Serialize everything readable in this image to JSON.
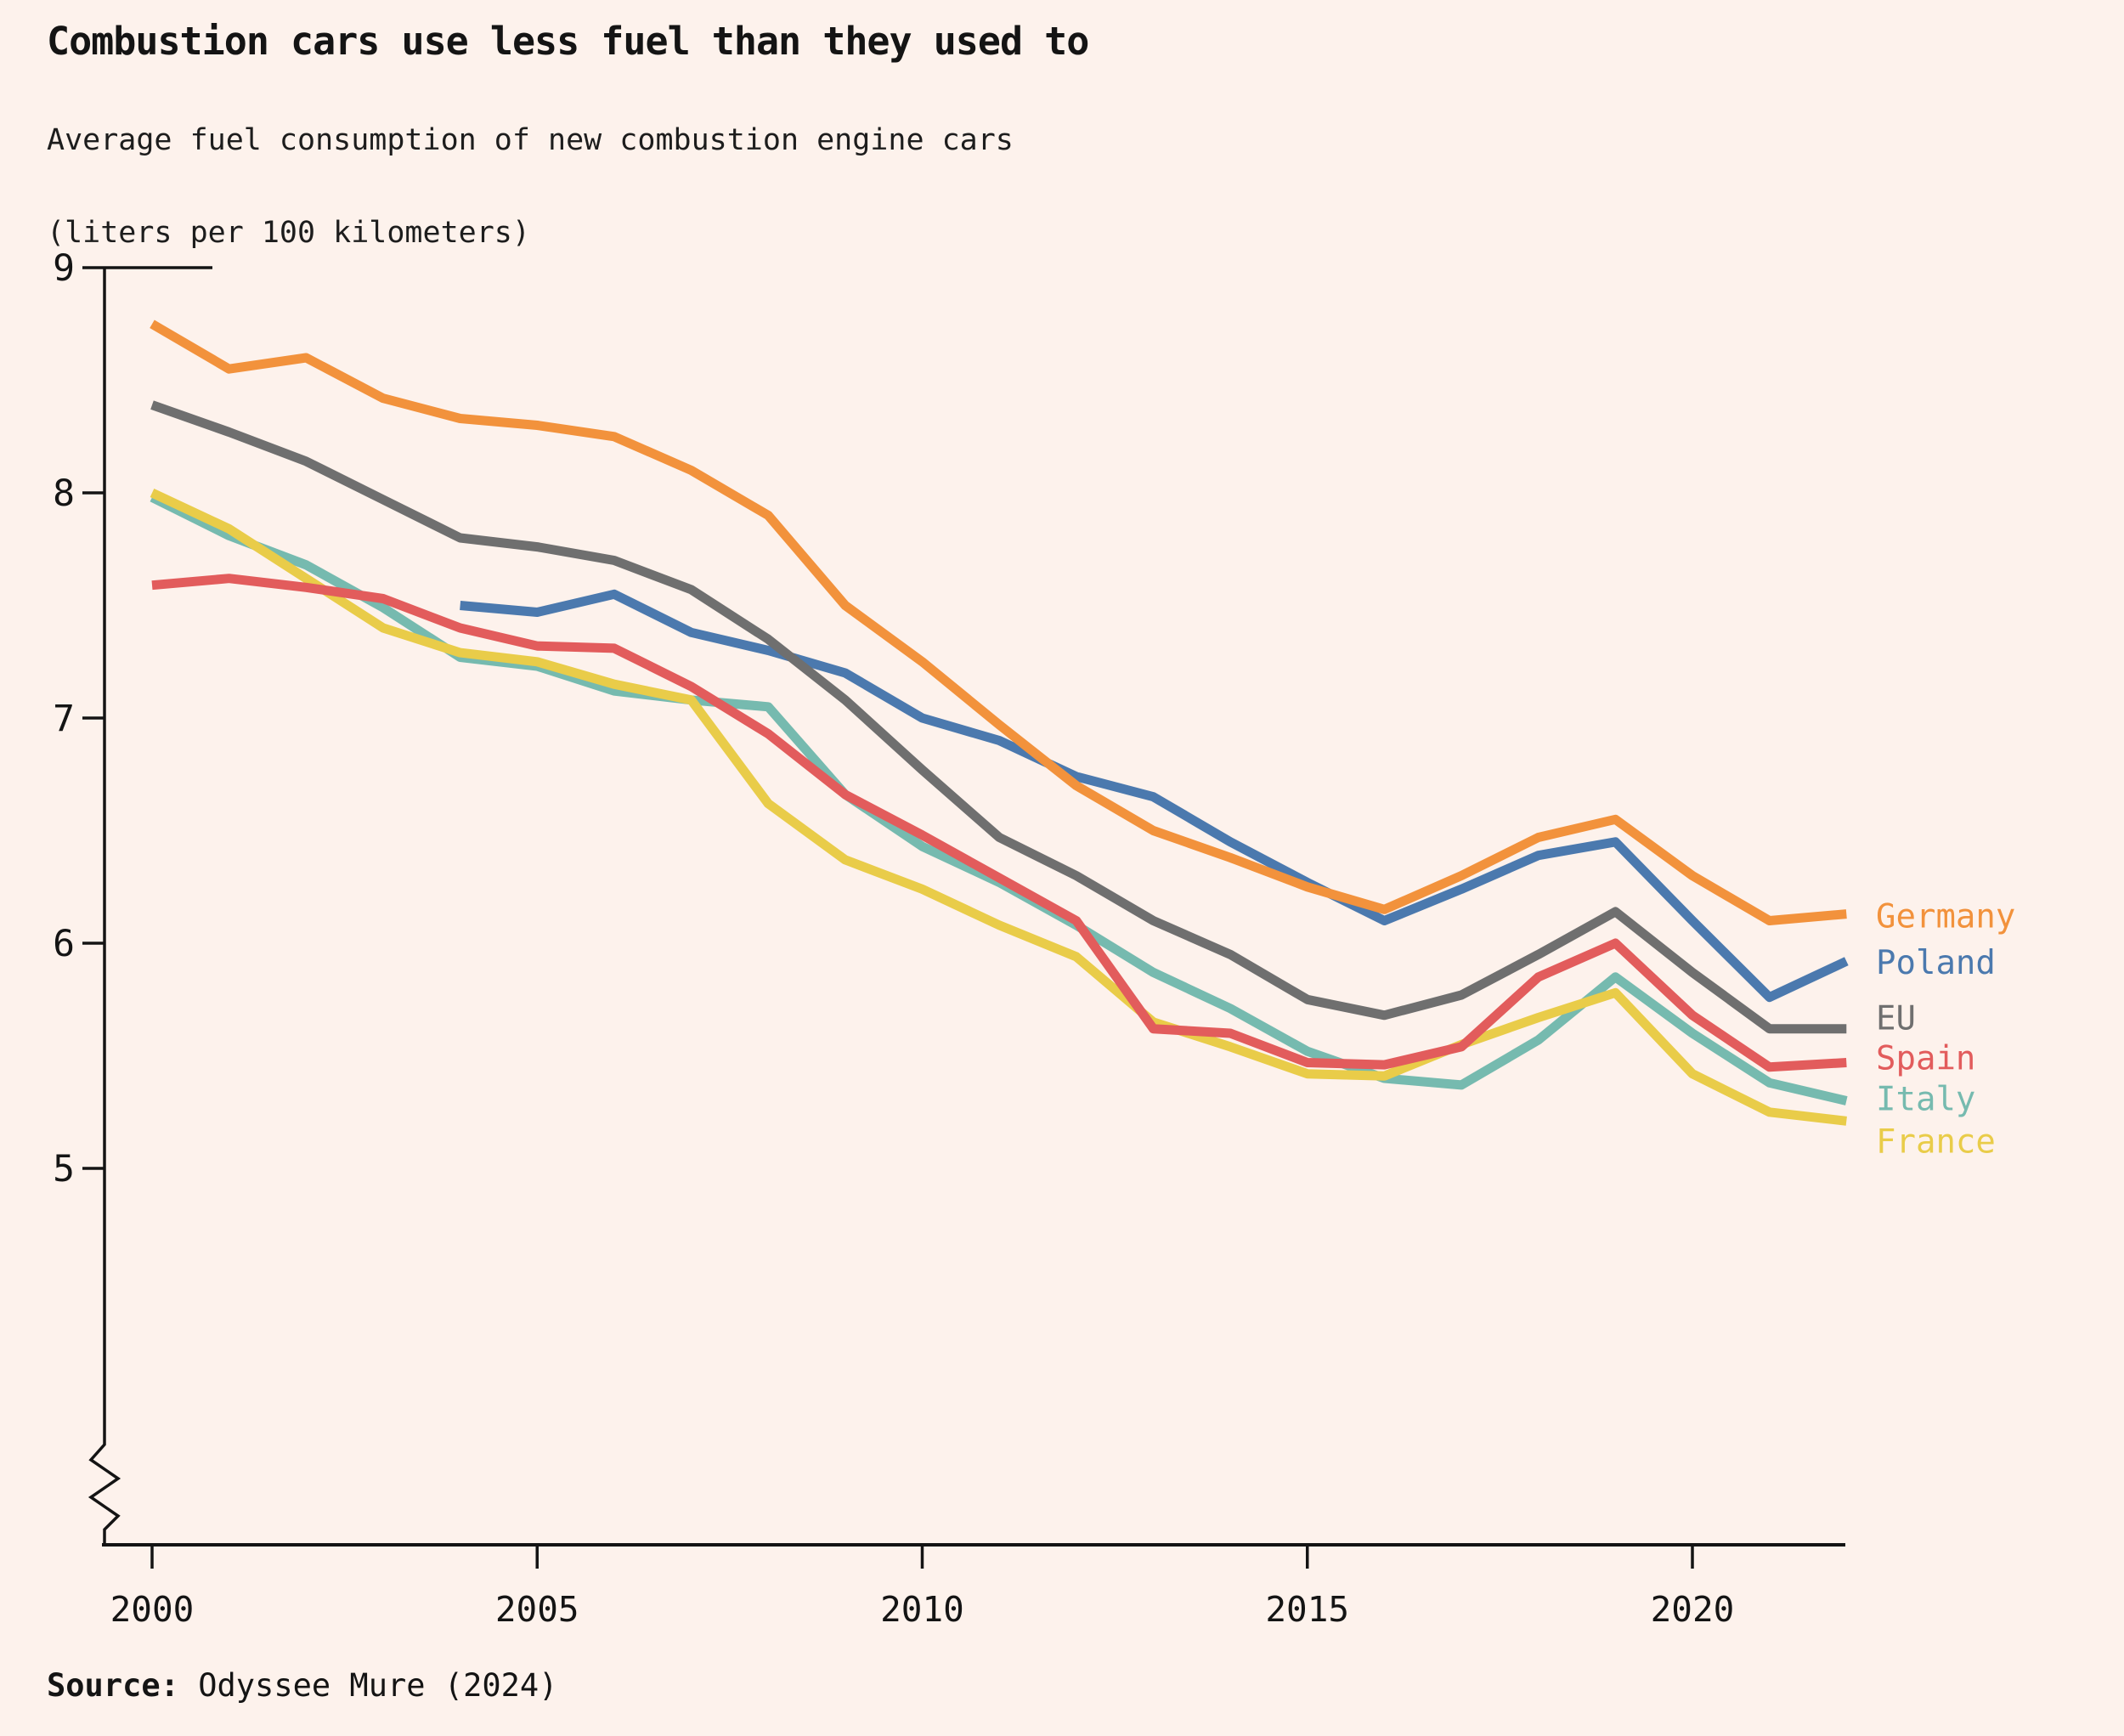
{
  "title": "Combustion cars use less fuel than they used to",
  "subtitle_line1": "Average fuel consumption of new combustion engine cars",
  "subtitle_line2": "(liters per 100 kilometers)",
  "source_label": "Source:",
  "source_text": " Odyssee Mure (2024)",
  "colors": {
    "background": "#fdf2ec",
    "text": "#141414",
    "axis": "#141414"
  },
  "chart_data": {
    "type": "line",
    "title": "Combustion cars use less fuel than they used to",
    "subtitle": "Average fuel consumption of new combustion engine cars (liters per 100 kilometers)",
    "xlabel": "",
    "ylabel": "liters per 100 kilometers",
    "x_range": [
      2000,
      2022
    ],
    "ylim": [
      5,
      9
    ],
    "y_ticks": [
      9,
      8,
      7,
      6,
      5
    ],
    "x_ticks": [
      2000,
      2005,
      2010,
      2015,
      2020
    ],
    "grid": false,
    "y_axis_break": true,
    "legend_position": "right-end-of-lines",
    "series": [
      {
        "name": "Italy",
        "color": "#76baaf",
        "start_year": 2000,
        "values": [
          7.98,
          7.81,
          7.68,
          7.49,
          7.27,
          7.23,
          7.12,
          7.08,
          7.05,
          6.66,
          6.43,
          6.27,
          6.08,
          5.87,
          5.71,
          5.52,
          5.4,
          5.37,
          5.57,
          5.85,
          5.6,
          5.38,
          5.3
        ]
      },
      {
        "name": "France",
        "color": "#e9cc49",
        "start_year": 2000,
        "values": [
          8.0,
          7.84,
          7.62,
          7.4,
          7.29,
          7.25,
          7.15,
          7.08,
          6.62,
          6.37,
          6.24,
          6.08,
          5.94,
          5.65,
          5.54,
          5.42,
          5.41,
          5.55,
          5.67,
          5.78,
          5.42,
          5.25,
          5.21
        ]
      },
      {
        "name": "Spain",
        "color": "#e25c5c",
        "start_year": 2000,
        "values": [
          7.59,
          7.62,
          7.58,
          7.53,
          7.4,
          7.32,
          7.31,
          7.14,
          6.93,
          6.66,
          6.48,
          6.29,
          6.1,
          5.62,
          5.6,
          5.47,
          5.46,
          5.54,
          5.85,
          6.0,
          5.68,
          5.45,
          5.47
        ]
      },
      {
        "name": "Poland",
        "color": "#4b79ae",
        "start_year": 2004,
        "values": [
          7.5,
          7.47,
          7.55,
          7.38,
          7.3,
          7.2,
          7.0,
          6.9,
          6.74,
          6.65,
          6.45,
          6.27,
          6.1,
          6.24,
          6.39,
          6.45,
          6.1,
          5.76,
          5.92
        ]
      },
      {
        "name": "EU",
        "color": "#6f6f6f",
        "start_year": 2000,
        "values": [
          8.39,
          8.27,
          8.14,
          7.97,
          7.8,
          7.76,
          7.7,
          7.57,
          7.35,
          7.08,
          6.77,
          6.47,
          6.3,
          6.1,
          5.95,
          5.75,
          5.68,
          5.77,
          5.95,
          6.14,
          5.87,
          5.62,
          5.62
        ]
      },
      {
        "name": "Germany",
        "color": "#f2923c",
        "start_year": 2000,
        "values": [
          8.75,
          8.55,
          8.6,
          8.42,
          8.33,
          8.3,
          8.25,
          8.1,
          7.9,
          7.5,
          7.25,
          6.97,
          6.7,
          6.5,
          6.38,
          6.25,
          6.15,
          6.3,
          6.47,
          6.55,
          6.3,
          6.1,
          6.13
        ]
      }
    ]
  }
}
